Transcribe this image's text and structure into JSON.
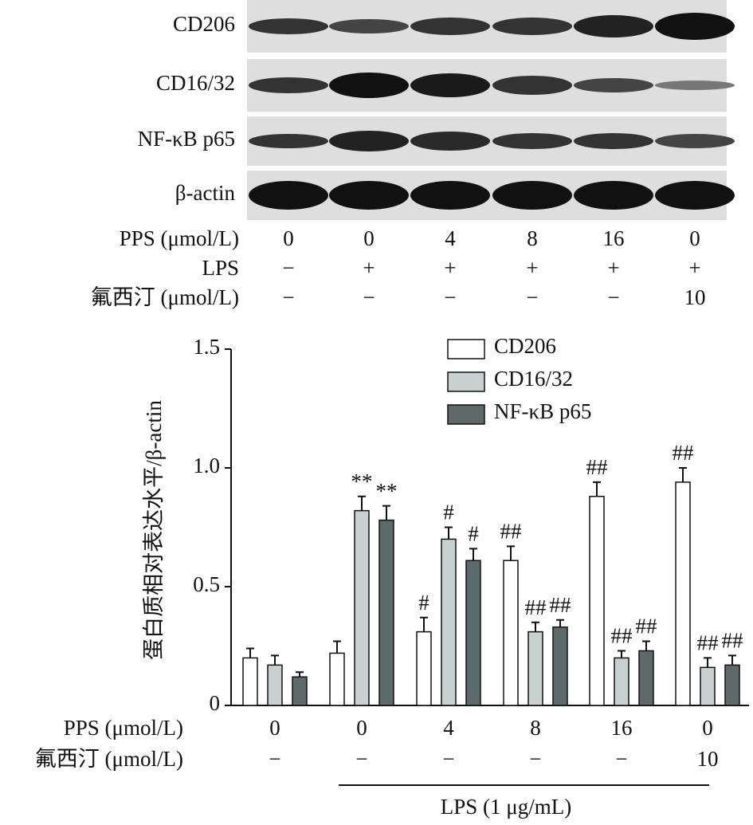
{
  "blot": {
    "rows": [
      "CD206",
      "CD16/32",
      "NF-κB p65",
      "β-actin"
    ],
    "conditions": [
      {
        "label": "PPS (μmol/L)",
        "values": [
          "0",
          "0",
          "4",
          "8",
          "16",
          "0"
        ]
      },
      {
        "label": "LPS",
        "values": [
          "−",
          "+",
          "+",
          "+",
          "+",
          "+"
        ]
      },
      {
        "label": "氟西汀 (μmol/L)",
        "values": [
          "−",
          "−",
          "−",
          "−",
          "−",
          "10"
        ]
      }
    ]
  },
  "chart_data": {
    "type": "bar",
    "y_label": "蛋白质相对表达水平/β-actin",
    "category_label": "PPS (μmol/L)",
    "categories": [
      "0",
      "0",
      "4",
      "8",
      "16",
      "0"
    ],
    "secondary_label": "氟西汀 (μmol/L)",
    "secondary_categories": [
      "−",
      "−",
      "−",
      "−",
      "−",
      "10"
    ],
    "group_label": "LPS (1 μg/mL)",
    "ylim": [
      0,
      1.5
    ],
    "yticks": [
      0,
      0.5,
      {
        "value": 1,
        "label": "1.0"
      },
      1.5
    ],
    "series": [
      {
        "name": "CD206",
        "color": "#ffffff",
        "values": [
          0.2,
          0.22,
          0.31,
          0.61,
          0.88,
          0.94
        ],
        "errors": [
          0.04,
          0.05,
          0.06,
          0.06,
          0.06,
          0.06
        ],
        "significance": [
          null,
          null,
          "#",
          "##",
          "##",
          "##"
        ]
      },
      {
        "name": "CD16/32",
        "color": "#c9d0d0",
        "values": [
          0.17,
          0.82,
          0.7,
          0.31,
          0.2,
          0.16
        ],
        "errors": [
          0.04,
          0.06,
          0.05,
          0.04,
          0.03,
          0.04
        ],
        "significance": [
          null,
          "**",
          "#",
          "##",
          "##",
          "##"
        ]
      },
      {
        "name": "NF-κB p65",
        "color": "#5e6a6a",
        "values": [
          0.12,
          0.78,
          0.61,
          0.33,
          0.23,
          0.17
        ],
        "errors": [
          0.02,
          0.06,
          0.05,
          0.03,
          0.04,
          0.04
        ],
        "significance": [
          null,
          "**",
          "#",
          "##",
          "##",
          "##"
        ]
      }
    ]
  }
}
